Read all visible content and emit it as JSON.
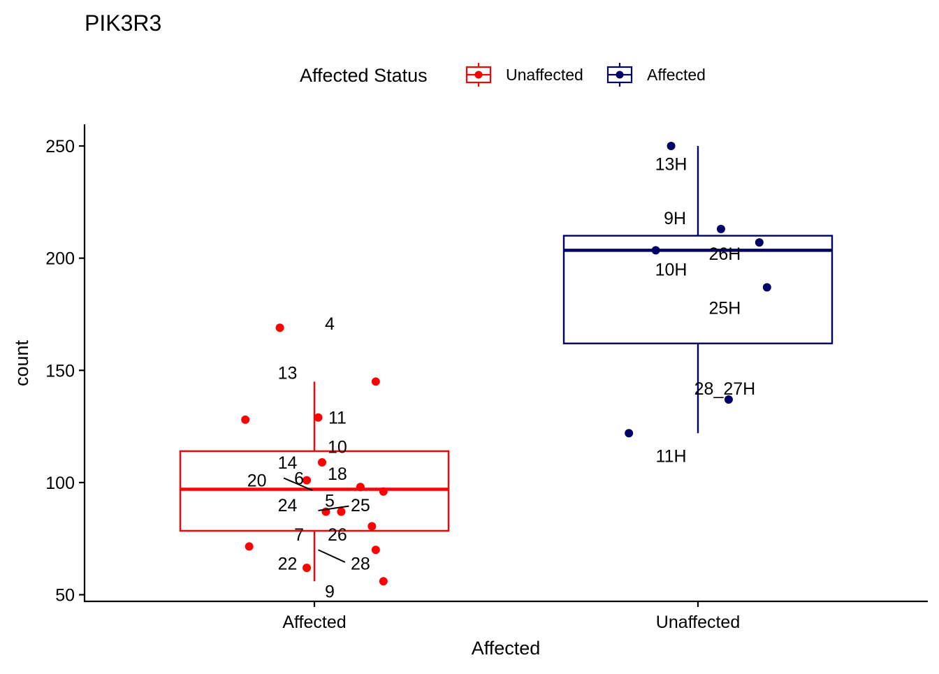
{
  "chart_data": {
    "type": "boxplot",
    "title": "PIK3R3",
    "xlabel": "Affected",
    "ylabel": "count",
    "ylim": [
      48,
      260
    ],
    "yticks": [
      50,
      100,
      150,
      200,
      250
    ],
    "categories": [
      "Affected",
      "Unaffected"
    ],
    "legend": {
      "title": "Affected Status",
      "position": "top",
      "entries": [
        {
          "label": "Unaffected",
          "color": "#ff0000"
        },
        {
          "label": "Affected",
          "color": "#000066"
        }
      ]
    },
    "grid": false,
    "series": [
      {
        "category": "Affected",
        "color": "#ff0000",
        "box": {
          "whisker_low": 56,
          "q1": 78.5,
          "median": 97,
          "q3": 114,
          "whisker_high": 145
        },
        "points": [
          {
            "x": 0.91,
            "y": 169
          },
          {
            "x": 1.16,
            "y": 145
          },
          {
            "x": 0.82,
            "y": 128
          },
          {
            "x": 1.01,
            "y": 129
          },
          {
            "x": 1.02,
            "y": 109
          },
          {
            "x": 0.98,
            "y": 101
          },
          {
            "x": 1.12,
            "y": 98
          },
          {
            "x": 1.18,
            "y": 96
          },
          {
            "x": 1.03,
            "y": 87
          },
          {
            "x": 1.07,
            "y": 87
          },
          {
            "x": 1.15,
            "y": 80.5
          },
          {
            "x": 0.83,
            "y": 71.5
          },
          {
            "x": 1.16,
            "y": 70
          },
          {
            "x": 0.98,
            "y": 62
          },
          {
            "x": 1.18,
            "y": 56
          }
        ],
        "labels": [
          {
            "text": "4",
            "x": 1.04,
            "y": 171
          },
          {
            "text": "13",
            "x": 0.93,
            "y": 149
          },
          {
            "text": "11",
            "x": 1.06,
            "y": 129
          },
          {
            "text": "10",
            "x": 1.06,
            "y": 116
          },
          {
            "text": "14",
            "x": 0.93,
            "y": 109
          },
          {
            "text": "18",
            "x": 1.06,
            "y": 104
          },
          {
            "text": "20",
            "x": 0.85,
            "y": 101
          },
          {
            "text": "6",
            "x": 0.96,
            "y": 102
          },
          {
            "text": "24",
            "x": 0.93,
            "y": 90
          },
          {
            "text": "5",
            "x": 1.04,
            "y": 92
          },
          {
            "text": "25",
            "x": 1.12,
            "y": 90
          },
          {
            "text": "7",
            "x": 0.96,
            "y": 77
          },
          {
            "text": "26",
            "x": 1.06,
            "y": 77
          },
          {
            "text": "22",
            "x": 0.93,
            "y": 64
          },
          {
            "text": "28",
            "x": 1.12,
            "y": 64
          },
          {
            "text": "9",
            "x": 1.04,
            "y": 51.5
          }
        ],
        "leaders": [
          {
            "x1": 0.92,
            "y1": 102,
            "x2": 0.995,
            "y2": 96.5
          },
          {
            "x1": 1.01,
            "y1": 87.5,
            "x2": 1.09,
            "y2": 89.5
          },
          {
            "x1": 1.01,
            "y1": 70,
            "x2": 1.08,
            "y2": 64.5
          }
        ]
      },
      {
        "category": "Unaffected",
        "color": "#000066",
        "box": {
          "whisker_low": 122,
          "q1": 162,
          "median": 203.5,
          "q3": 210,
          "whisker_high": 250
        },
        "points": [
          {
            "x": 1.93,
            "y": 250
          },
          {
            "x": 2.06,
            "y": 213
          },
          {
            "x": 2.16,
            "y": 207
          },
          {
            "x": 1.89,
            "y": 203.5
          },
          {
            "x": 2.18,
            "y": 187
          },
          {
            "x": 2.08,
            "y": 137
          },
          {
            "x": 1.82,
            "y": 122
          }
        ],
        "labels": [
          {
            "text": "13H",
            "x": 1.93,
            "y": 242
          },
          {
            "text": "9H",
            "x": 1.94,
            "y": 218
          },
          {
            "text": "26H",
            "x": 2.07,
            "y": 202
          },
          {
            "text": "10H",
            "x": 1.93,
            "y": 195
          },
          {
            "text": "25H",
            "x": 2.07,
            "y": 178
          },
          {
            "text": "28_27H",
            "x": 2.07,
            "y": 142
          },
          {
            "text": "11H",
            "x": 1.93,
            "y": 112
          }
        ],
        "leaders": []
      }
    ]
  }
}
